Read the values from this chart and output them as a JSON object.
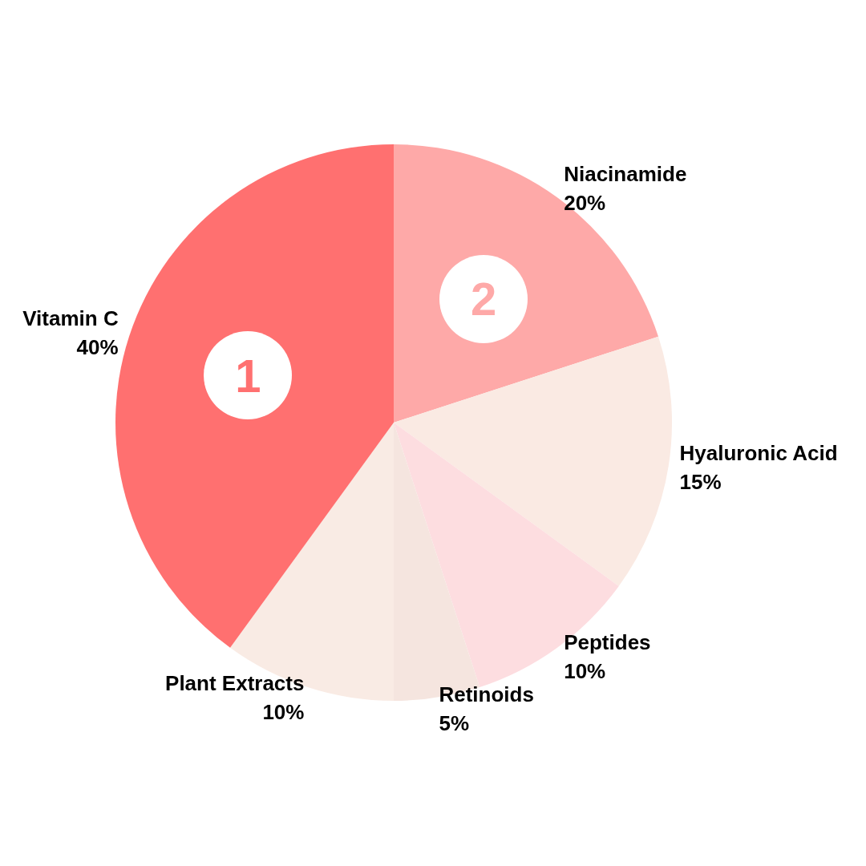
{
  "chart_data": {
    "type": "pie",
    "categories": [
      "Niacinamide",
      "Hyaluronic Acid",
      "Peptides",
      "Retinoids",
      "Plant Extracts",
      "Vitamin C"
    ],
    "values": [
      20,
      15,
      10,
      5,
      10,
      40
    ],
    "value_labels": [
      "20%",
      "15%",
      "10%",
      "5%",
      "10%",
      "40%"
    ],
    "colors": [
      "#fea9a8",
      "#faeae3",
      "#fddde0",
      "#f5e5df",
      "#f9ebe4",
      "#ff7070"
    ],
    "annotations": [
      {
        "text": "1",
        "x": "Vitamin C"
      },
      {
        "text": "2",
        "x": "Niacinamide"
      }
    ],
    "legend": false
  }
}
